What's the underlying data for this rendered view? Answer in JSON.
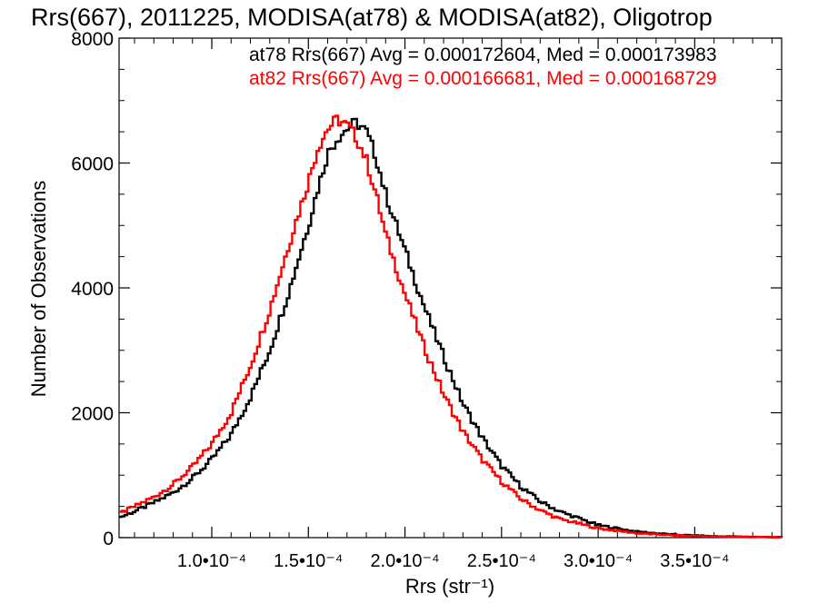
{
  "chart_data": {
    "type": "line",
    "title": "Rrs(667), 2011225, MODISA(at78) & MODISA(at82), Oligotrop",
    "xlabel": "Rrs (str⁻¹)",
    "ylabel": "Number of Observations",
    "xlim": [
      5.2e-05,
      0.000395
    ],
    "ylim": [
      0,
      8000
    ],
    "x_ticks": [
      0.0001,
      0.00015,
      0.0002,
      0.00025,
      0.0003,
      0.00035
    ],
    "x_tick_labels": [
      "1.0•10⁻⁴",
      "1.5•10⁻⁴",
      "2.0•10⁻⁴",
      "2.5•10⁻⁴",
      "3.0•10⁻⁴",
      "3.5•10⁻⁴"
    ],
    "y_ticks": [
      0,
      2000,
      4000,
      6000,
      8000
    ],
    "y_tick_labels": [
      "0",
      "2000",
      "4000",
      "6000",
      "8000"
    ],
    "grid": false,
    "legend": "top-right",
    "annotations": [
      {
        "text": "at78 Rrs(667) Avg = 0.000172604, Med = 0.000173983",
        "color": "#000000"
      },
      {
        "text": "at82 Rrs(667) Avg = 0.000166681, Med = 0.000168729",
        "color": "#ff0000"
      }
    ],
    "series": [
      {
        "name": "at78",
        "color": "#000000",
        "x": [
          5.2e-05,
          6e-05,
          7e-05,
          8e-05,
          9e-05,
          0.0001,
          0.00011,
          0.00012,
          0.00013,
          0.00014,
          0.00015,
          0.000155,
          0.00016,
          0.000165,
          0.00017,
          0.000175,
          0.00018,
          0.000185,
          0.00019,
          0.0002,
          0.00021,
          0.00022,
          0.00023,
          0.00024,
          0.00025,
          0.00026,
          0.00027,
          0.00028,
          0.0003,
          0.00032,
          0.00034,
          0.00036,
          0.00038,
          0.000395
        ],
        "y": [
          320,
          420,
          560,
          720,
          950,
          1250,
          1650,
          2250,
          3000,
          3950,
          5000,
          5600,
          6150,
          6400,
          6550,
          6650,
          6500,
          6100,
          5500,
          4600,
          3700,
          2900,
          2150,
          1600,
          1150,
          820,
          580,
          420,
          200,
          95,
          45,
          22,
          12,
          8
        ]
      },
      {
        "name": "at82",
        "color": "#ff0000",
        "x": [
          5.2e-05,
          6e-05,
          7e-05,
          8e-05,
          9e-05,
          0.0001,
          0.00011,
          0.00012,
          0.00013,
          0.00014,
          0.00015,
          0.000155,
          0.00016,
          0.000165,
          0.00017,
          0.000175,
          0.00018,
          0.000185,
          0.00019,
          0.0002,
          0.00021,
          0.00022,
          0.00023,
          0.00024,
          0.00025,
          0.00026,
          0.00027,
          0.00028,
          0.0003,
          0.00032,
          0.00034,
          0.00036,
          0.00038,
          0.000395
        ],
        "y": [
          380,
          500,
          650,
          850,
          1130,
          1500,
          2000,
          2750,
          3650,
          4700,
          5700,
          6250,
          6550,
          6700,
          6600,
          6400,
          6050,
          5500,
          4850,
          3900,
          3050,
          2300,
          1700,
          1250,
          900,
          620,
          440,
          300,
          150,
          70,
          35,
          18,
          10,
          6
        ]
      }
    ]
  }
}
